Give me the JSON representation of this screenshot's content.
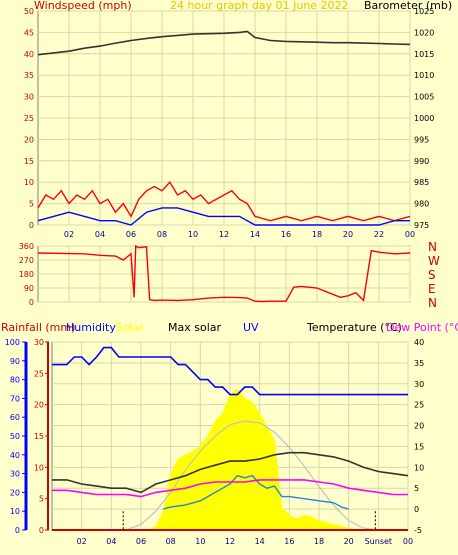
{
  "chart_data": [
    {
      "type": "line",
      "panel": "wind-barometer",
      "title": "24 hour graph day   01 June 2022",
      "left_label": "Windspeed (mph)",
      "right_label": "Barometer (mb)",
      "y_left": {
        "range": [
          0,
          50
        ],
        "ticks": [
          0,
          5,
          10,
          15,
          20,
          25,
          30,
          35,
          40,
          45,
          50
        ]
      },
      "y_right": {
        "range": [
          975,
          1025
        ],
        "ticks": [
          975,
          980,
          985,
          990,
          995,
          1000,
          1005,
          1010,
          1015,
          1020,
          1025
        ]
      },
      "x_tick_labels": [
        "02",
        "04",
        "06",
        "08",
        "10",
        "12",
        "14",
        "16",
        "18",
        "20",
        "22",
        "00"
      ],
      "series": [
        {
          "name": "Barometer",
          "color": "#333333",
          "axis": "right",
          "x": [
            0,
            1,
            2,
            3,
            4,
            5,
            6,
            7,
            8,
            9,
            10,
            11,
            12,
            13,
            13.5,
            14,
            15,
            16,
            17,
            18,
            19,
            20,
            21,
            22,
            23,
            24
          ],
          "values": [
            1014.8,
            1015.2,
            1015.6,
            1016.3,
            1016.8,
            1017.5,
            1018.1,
            1018.6,
            1019.0,
            1019.3,
            1019.6,
            1019.7,
            1019.8,
            1020.0,
            1020.2,
            1018.8,
            1018.1,
            1017.9,
            1017.8,
            1017.7,
            1017.6,
            1017.6,
            1017.5,
            1017.4,
            1017.3,
            1017.2
          ]
        },
        {
          "name": "Wind gust",
          "color": "#ff0000",
          "axis": "left",
          "x": [
            0,
            0.5,
            1,
            1.5,
            2,
            2.5,
            3,
            3.5,
            4,
            4.5,
            5,
            5.5,
            6,
            6.5,
            7,
            7.5,
            8,
            8.5,
            9,
            9.5,
            10,
            10.5,
            11,
            11.5,
            12,
            12.5,
            13,
            13.5,
            14,
            15,
            16,
            17,
            18,
            19,
            20,
            21,
            22,
            23,
            24
          ],
          "values": [
            4,
            7,
            6,
            8,
            5,
            7,
            6,
            8,
            5,
            6,
            3,
            5,
            2,
            6,
            8,
            9,
            8,
            10,
            7,
            8,
            6,
            7,
            5,
            6,
            7,
            8,
            6,
            5,
            2,
            1,
            2,
            1,
            2,
            1,
            2,
            1,
            2,
            1,
            2
          ]
        },
        {
          "name": "Wind speed",
          "color": "#0000ff",
          "axis": "left",
          "x": [
            0,
            1,
            2,
            3,
            4,
            5,
            6,
            7,
            8,
            9,
            10,
            11,
            12,
            13,
            14,
            15,
            16,
            17,
            18,
            19,
            20,
            21,
            22,
            23,
            24
          ],
          "values": [
            1,
            2,
            3,
            2,
            1,
            1,
            0,
            3,
            4,
            4,
            3,
            2,
            2,
            2,
            0,
            0,
            0,
            0,
            0,
            0,
            0,
            0,
            0,
            1,
            1
          ]
        }
      ]
    },
    {
      "type": "line",
      "panel": "wind-direction",
      "y_left": {
        "range": [
          0,
          360
        ],
        "ticks": [
          0,
          90,
          180,
          270,
          360
        ]
      },
      "right_labels": [
        "N",
        "W",
        "S",
        "E",
        "N"
      ],
      "x": [
        0,
        3,
        4,
        5,
        5.5,
        6,
        6.2,
        6.3,
        6.5,
        7,
        7.2,
        7.5,
        8,
        9,
        10,
        11,
        12,
        13,
        13.5,
        14,
        14.5,
        15,
        16,
        16.5,
        17,
        18,
        19,
        19.5,
        20,
        20.5,
        21,
        21.5,
        22,
        23,
        24
      ],
      "values": [
        315,
        310,
        300,
        295,
        270,
        310,
        30,
        360,
        350,
        355,
        15,
        10,
        12,
        10,
        15,
        25,
        30,
        28,
        25,
        5,
        3,
        5,
        5,
        95,
        100,
        90,
        50,
        30,
        40,
        60,
        10,
        330,
        320,
        310,
        315
      ],
      "color": "#ff0000"
    },
    {
      "type": "line",
      "panel": "rain-humidity-solar-temperature",
      "labels": [
        "Rainfall (mm)",
        "Humidity",
        "Solar",
        "Max solar",
        "UV",
        "Temperature (°C)",
        "Dew Point (°C)"
      ],
      "label_colors": [
        "#cc0000",
        "#0000ff",
        "#ffff00",
        "#000000",
        "#0000ff",
        "#000000",
        "#ff00ff"
      ],
      "y_humidity": {
        "range": [
          0,
          100
        ],
        "ticks": [
          0,
          10,
          20,
          30,
          40,
          50,
          60,
          70,
          80,
          90,
          100
        ]
      },
      "y_rain": {
        "range": [
          0,
          30
        ],
        "ticks": [
          0,
          5,
          10,
          15,
          20,
          25,
          30
        ]
      },
      "y_temperature": {
        "range": [
          -5,
          40
        ],
        "ticks": [
          -5,
          0,
          5,
          10,
          15,
          20,
          25,
          30,
          35,
          40
        ]
      },
      "x_tick_labels": [
        "02",
        "04",
        "06",
        "08",
        "10",
        "12",
        "14",
        "16",
        "18",
        "20",
        "Sunset",
        "00"
      ],
      "sunrise_hour": 4.8,
      "sunset_hour": 21.8,
      "series": [
        {
          "name": "Humidity",
          "color": "#0000ff",
          "x": [
            0,
            1,
            1.5,
            2,
            2.5,
            3,
            3.5,
            4,
            4.5,
            5,
            5.5,
            6,
            6.5,
            7,
            7.5,
            8,
            8.5,
            9,
            9.5,
            10,
            10.5,
            11,
            11.5,
            12,
            12.5,
            13,
            13.5,
            14,
            15,
            24
          ],
          "values": [
            88,
            88,
            92,
            92,
            88,
            92,
            97,
            97,
            92,
            92,
            92,
            92,
            92,
            92,
            92,
            92,
            88,
            88,
            84,
            80,
            80,
            76,
            76,
            72,
            72,
            76,
            76,
            72,
            72,
            72
          ]
        },
        {
          "name": "Solar",
          "color": "#ffff00",
          "x": [
            6.5,
            7,
            7.5,
            8,
            8.5,
            9,
            9.5,
            10,
            10.5,
            11,
            11.5,
            12,
            12.5,
            13,
            13.5,
            14,
            14.5,
            15,
            15.5,
            16,
            16.5,
            17,
            17.5,
            18,
            18.5,
            19,
            19.5,
            20,
            21
          ],
          "values": [
            0,
            2,
            10,
            30,
            38,
            40,
            42,
            45,
            50,
            58,
            62,
            72,
            75,
            70,
            68,
            62,
            55,
            48,
            12,
            8,
            6,
            8,
            7,
            5,
            4,
            3,
            2,
            1,
            0
          ]
        },
        {
          "name": "Max solar",
          "color": "#c0c0c0",
          "x": [
            5,
            6,
            7,
            8,
            9,
            10,
            11,
            12,
            13,
            14,
            15,
            16,
            17,
            18,
            19,
            20,
            21,
            22
          ],
          "values": [
            0,
            3,
            10,
            20,
            32,
            42,
            50,
            56,
            58,
            57,
            52,
            44,
            34,
            23,
            13,
            5,
            1,
            0
          ]
        },
        {
          "name": "UV",
          "color": "#1e88d8",
          "x": [
            7.5,
            8,
            9,
            10,
            10.5,
            11,
            11.5,
            12,
            12.5,
            13,
            13.5,
            14,
            14.5,
            15,
            15.5,
            16,
            17,
            18,
            19,
            19.5,
            20
          ],
          "values": [
            0,
            0.5,
            1,
            2,
            3,
            4,
            5,
            6,
            8,
            7.5,
            8,
            6,
            5,
            5.5,
            3,
            3,
            2.5,
            2,
            1.5,
            0.5,
            0
          ]
        },
        {
          "name": "Temperature",
          "color": "#333333",
          "x": [
            0,
            1,
            2,
            3,
            4,
            5,
            6,
            7,
            8,
            9,
            10,
            11,
            12,
            13,
            14,
            15,
            16,
            17,
            18,
            19,
            20,
            21,
            22,
            23,
            24
          ],
          "values": [
            7,
            7,
            6,
            5.5,
            5,
            5,
            4,
            6,
            7,
            8,
            9.5,
            10.5,
            11.5,
            11.5,
            12,
            13,
            13.5,
            13.5,
            13,
            12.5,
            11.5,
            10,
            9,
            8.5,
            8
          ]
        },
        {
          "name": "Dew Point",
          "color": "#ff00ff",
          "x": [
            0,
            1,
            2,
            3,
            4,
            5,
            6,
            7,
            8,
            9,
            10,
            11,
            12,
            13,
            14,
            15,
            16,
            17,
            18,
            19,
            20,
            21,
            22,
            23,
            24
          ],
          "values": [
            4.5,
            4.5,
            4,
            3.5,
            3.5,
            3.5,
            3,
            4,
            4.5,
            5,
            6,
            6.5,
            6.5,
            6.5,
            7,
            7,
            7,
            7,
            6.5,
            6,
            5,
            4.5,
            4,
            3.5,
            3.5
          ]
        },
        {
          "name": "Rainfall",
          "color": "#cc0000",
          "x": [
            0,
            24
          ],
          "values": [
            0,
            0
          ]
        }
      ]
    }
  ]
}
